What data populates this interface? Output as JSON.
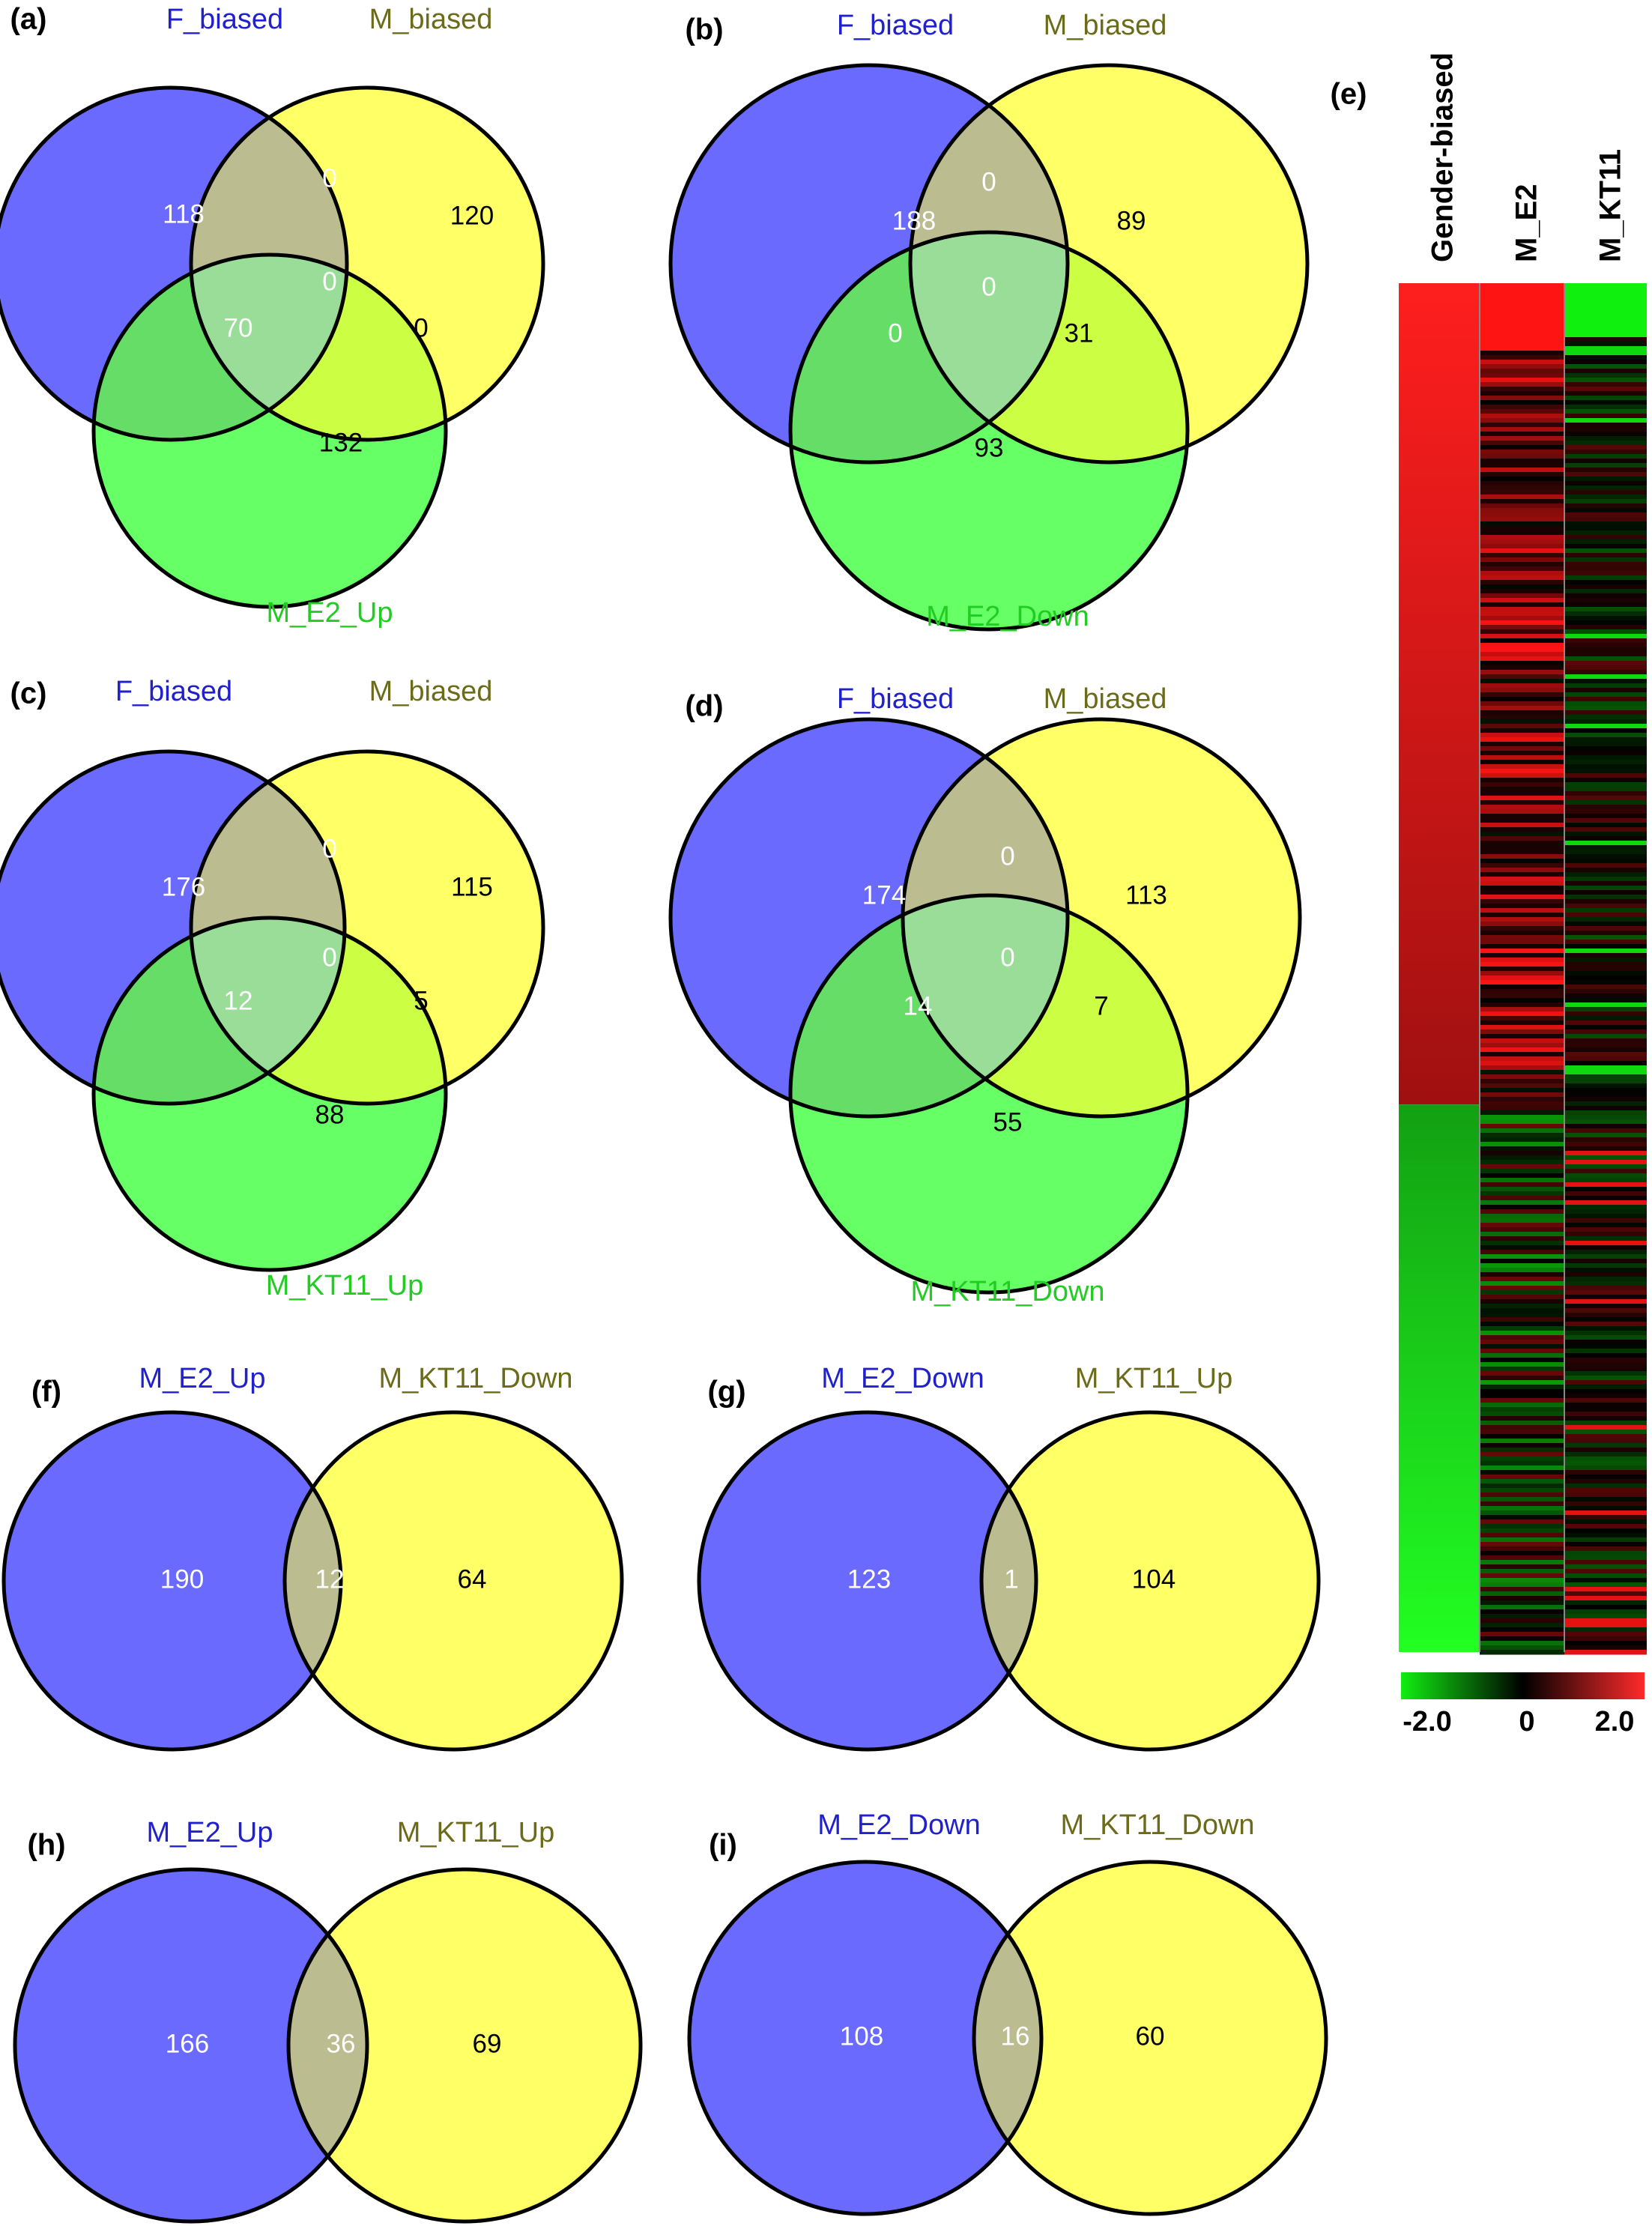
{
  "colors": {
    "blue_set": "#6a6aff",
    "yellow_set": "#ffff66",
    "green_set": "#66ff66",
    "blue_yellow": "#bcbc91",
    "blue_green": "#66dd66",
    "yellow_green": "#ccff44",
    "triple": "#99dd99",
    "label_blue": "#2020cc",
    "label_olive": "#6b6b1a",
    "label_green": "#22cc22",
    "heat_high": "#ff2a2a",
    "heat_mid": "#000000",
    "heat_low": "#11ee11"
  },
  "venn3": [
    {
      "panel": "(a)",
      "sets": [
        "F_biased",
        "M_biased",
        "M_E2_Up"
      ],
      "counts": {
        "A": "118",
        "B": "120",
        "C": "132",
        "AB": "0",
        "AC": "70",
        "BC": "0",
        "ABC": "0"
      }
    },
    {
      "panel": "(b)",
      "sets": [
        "F_biased",
        "M_biased",
        "M_E2_Down"
      ],
      "counts": {
        "A": "188",
        "B": "89",
        "C": "93",
        "AB": "0",
        "AC": "0",
        "BC": "31",
        "ABC": "0"
      }
    },
    {
      "panel": "(c)",
      "sets": [
        "F_biased",
        "M_biased",
        "M_KT11_Up"
      ],
      "counts": {
        "A": "176",
        "B": "115",
        "C": "88",
        "AB": "0",
        "AC": "12",
        "BC": "5",
        "ABC": "0"
      }
    },
    {
      "panel": "(d)",
      "sets": [
        "F_biased",
        "M_biased",
        "M_KT11_Down"
      ],
      "counts": {
        "A": "174",
        "B": "113",
        "C": "55",
        "AB": "0",
        "AC": "14",
        "BC": "7",
        "ABC": "0"
      }
    }
  ],
  "venn2": [
    {
      "panel": "(f)",
      "sets": [
        "M_E2_Up",
        "M_KT11_Down"
      ],
      "counts": {
        "A": "190",
        "AB": "12",
        "B": "64"
      }
    },
    {
      "panel": "(g)",
      "sets": [
        "M_E2_Down",
        "M_KT11_Up"
      ],
      "counts": {
        "A": "123",
        "AB": "1",
        "B": "104"
      }
    },
    {
      "panel": "(h)",
      "sets": [
        "M_E2_Up",
        "M_KT11_Up"
      ],
      "counts": {
        "A": "166",
        "AB": "36",
        "B": "69"
      }
    },
    {
      "panel": "(i)",
      "sets": [
        "M_E2_Down",
        "M_KT11_Down"
      ],
      "counts": {
        "A": "108",
        "AB": "16",
        "B": "60"
      }
    }
  ],
  "heatmap": {
    "panel": "(e)",
    "columns": [
      "Gender-biased",
      "M_E2",
      "M_KT11"
    ],
    "scale_min": "-2.0",
    "scale_mid": "0",
    "scale_max": "2.0",
    "high_fraction": 0.6
  }
}
